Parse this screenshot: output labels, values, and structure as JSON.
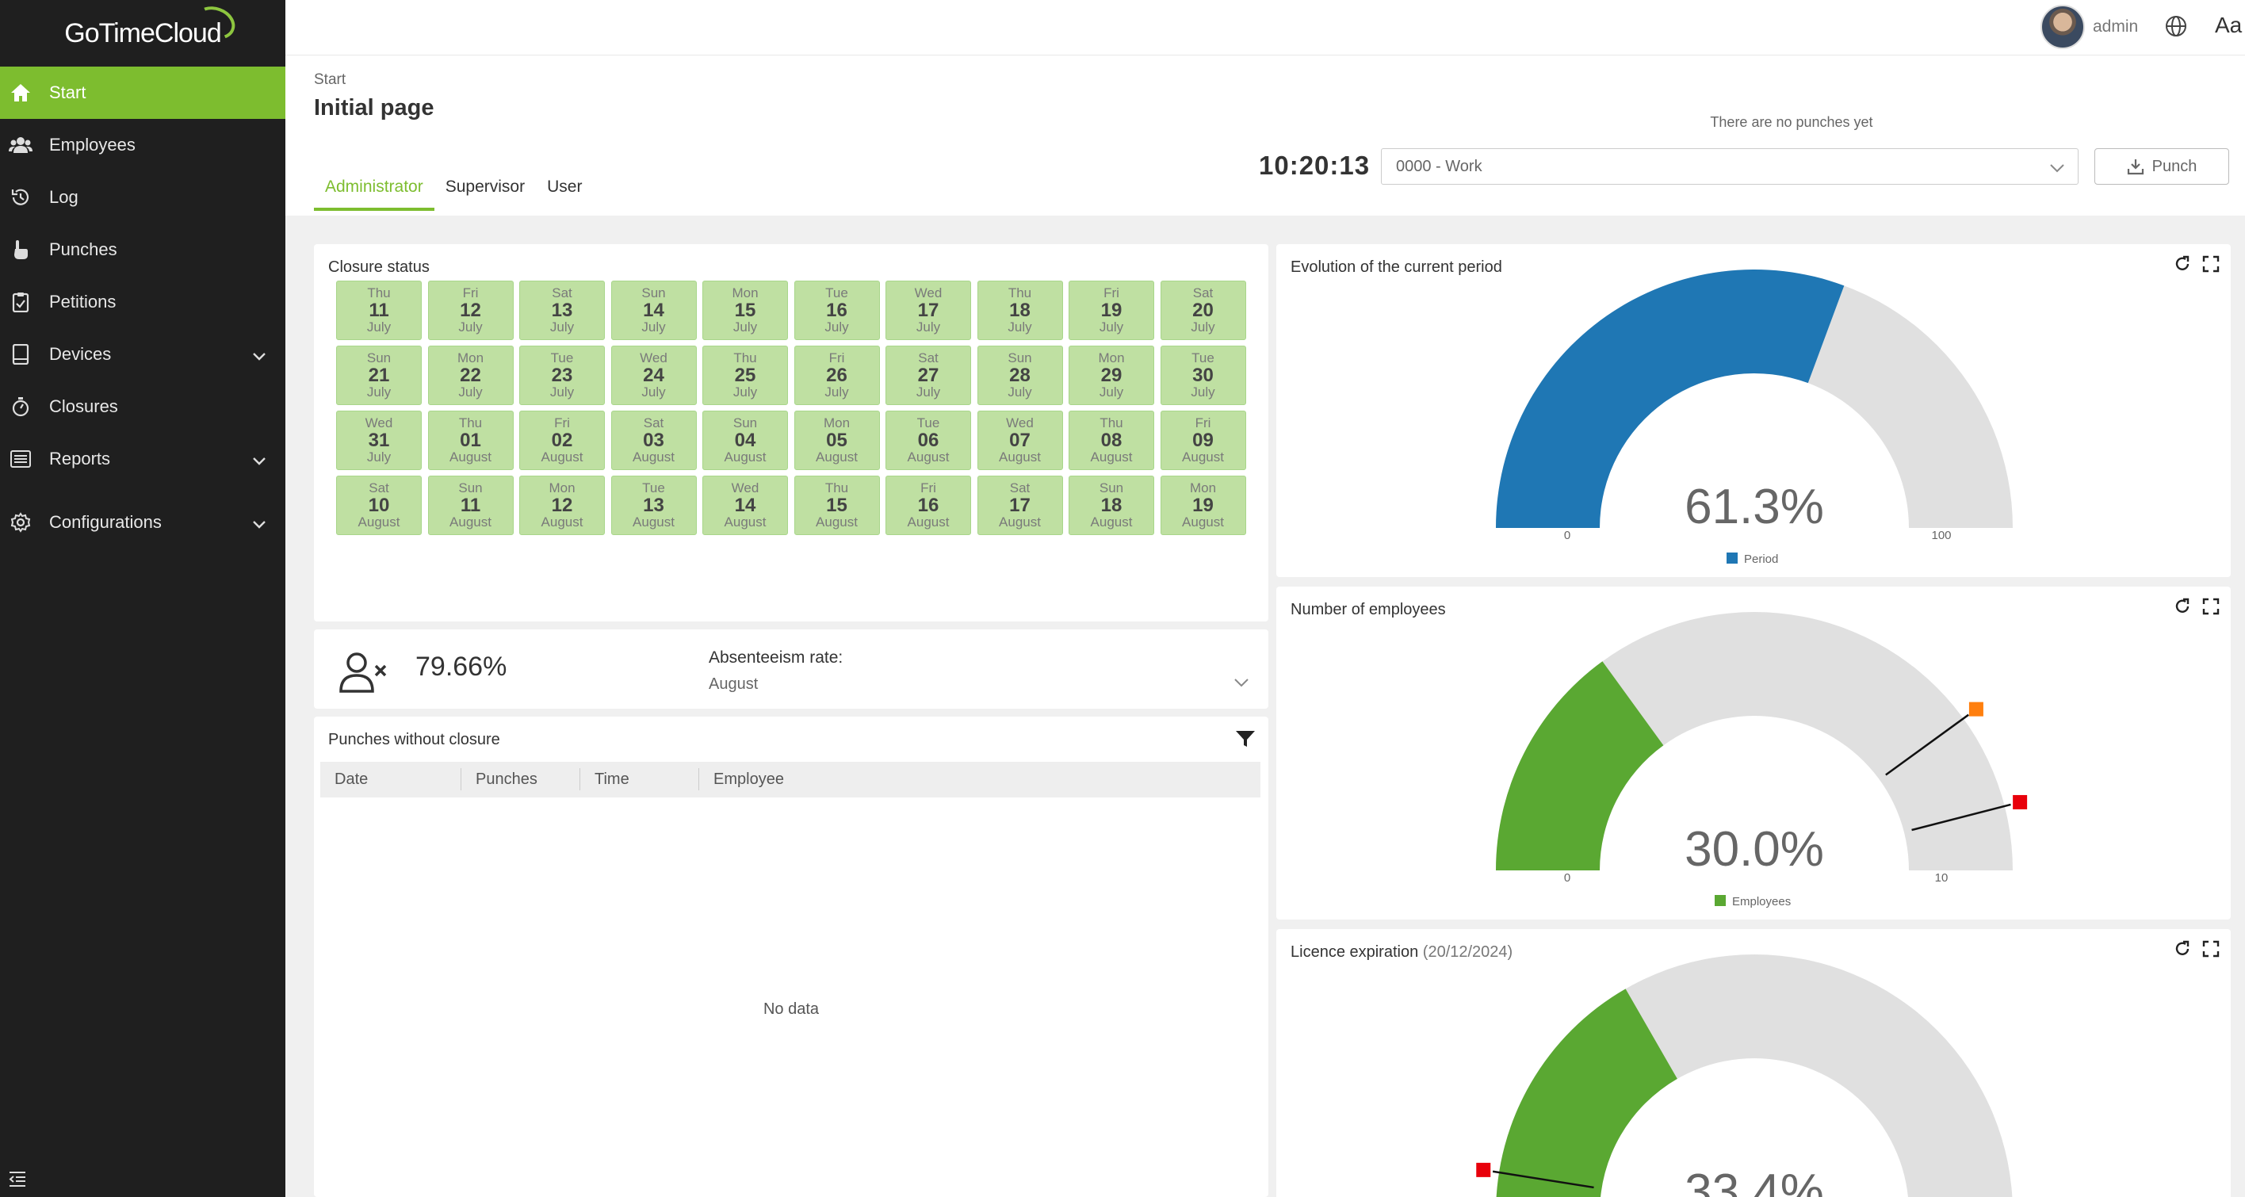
{
  "app": {
    "name_part1": "GoTime",
    "name_part2": "Cloud"
  },
  "sidebar": {
    "items": [
      {
        "label": "Start",
        "icon": "home-icon"
      },
      {
        "label": "Employees",
        "icon": "users-icon"
      },
      {
        "label": "Log",
        "icon": "history-icon"
      },
      {
        "label": "Punches",
        "icon": "hand-icon"
      },
      {
        "label": "Petitions",
        "icon": "clipboard-icon"
      },
      {
        "label": "Devices",
        "icon": "tablet-icon"
      },
      {
        "label": "Closures",
        "icon": "stopwatch-icon"
      },
      {
        "label": "Reports",
        "icon": "list-icon"
      },
      {
        "label": "Configurations",
        "icon": "gear-icon"
      }
    ]
  },
  "topbar": {
    "username": "admin",
    "font_button": "Aa"
  },
  "header": {
    "breadcrumb": "Start",
    "title": "Initial page",
    "tabs": [
      "Administrator",
      "Supervisor",
      "User"
    ],
    "no_punches": "There are no punches yet",
    "clock": "10:20:13",
    "work_select": "0000 - Work",
    "punch_button": "Punch"
  },
  "closure": {
    "title": "Closure status",
    "days": [
      [
        "Thu",
        "11",
        "July"
      ],
      [
        "Fri",
        "12",
        "July"
      ],
      [
        "Sat",
        "13",
        "July"
      ],
      [
        "Sun",
        "14",
        "July"
      ],
      [
        "Mon",
        "15",
        "July"
      ],
      [
        "Tue",
        "16",
        "July"
      ],
      [
        "Wed",
        "17",
        "July"
      ],
      [
        "Thu",
        "18",
        "July"
      ],
      [
        "Fri",
        "19",
        "July"
      ],
      [
        "Sat",
        "20",
        "July"
      ],
      [
        "Sun",
        "21",
        "July"
      ],
      [
        "Mon",
        "22",
        "July"
      ],
      [
        "Tue",
        "23",
        "July"
      ],
      [
        "Wed",
        "24",
        "July"
      ],
      [
        "Thu",
        "25",
        "July"
      ],
      [
        "Fri",
        "26",
        "July"
      ],
      [
        "Sat",
        "27",
        "July"
      ],
      [
        "Sun",
        "28",
        "July"
      ],
      [
        "Mon",
        "29",
        "July"
      ],
      [
        "Tue",
        "30",
        "July"
      ],
      [
        "Wed",
        "31",
        "July"
      ],
      [
        "Thu",
        "01",
        "August"
      ],
      [
        "Fri",
        "02",
        "August"
      ],
      [
        "Sat",
        "03",
        "August"
      ],
      [
        "Sun",
        "04",
        "August"
      ],
      [
        "Mon",
        "05",
        "August"
      ],
      [
        "Tue",
        "06",
        "August"
      ],
      [
        "Wed",
        "07",
        "August"
      ],
      [
        "Thu",
        "08",
        "August"
      ],
      [
        "Fri",
        "09",
        "August"
      ],
      [
        "Sat",
        "10",
        "August"
      ],
      [
        "Sun",
        "11",
        "August"
      ],
      [
        "Mon",
        "12",
        "August"
      ],
      [
        "Tue",
        "13",
        "August"
      ],
      [
        "Wed",
        "14",
        "August"
      ],
      [
        "Thu",
        "15",
        "August"
      ],
      [
        "Fri",
        "16",
        "August"
      ],
      [
        "Sat",
        "17",
        "August"
      ],
      [
        "Sun",
        "18",
        "August"
      ],
      [
        "Mon",
        "19",
        "August"
      ]
    ]
  },
  "absenteeism": {
    "value": "79.66%",
    "label": "Absenteeism rate:",
    "month": "August"
  },
  "punches_table": {
    "title": "Punches without closure",
    "columns": [
      "Date",
      "Punches",
      "Time",
      "Employee"
    ],
    "empty_text": "No data"
  },
  "gauges": {
    "period": {
      "title": "Evolution of the current period",
      "value_text": "61.3%",
      "fraction": 0.613,
      "min": "0",
      "max": "100",
      "legend": "Period",
      "color": "#1f77b4"
    },
    "employees": {
      "title": "Number of employees",
      "value_text": "30.0%",
      "fraction": 0.3,
      "min": "0",
      "max": "10",
      "legend": "Employees",
      "color": "#5aa832",
      "markers": [
        {
          "fraction": 0.8,
          "color": "#ff7f0e"
        },
        {
          "fraction": 0.92,
          "color": "#e8000b"
        }
      ]
    },
    "licence": {
      "title": "Licence expiration",
      "date": "(20/12/2024)",
      "value_text": "33.4%",
      "fraction": 0.334,
      "color": "#5aa832",
      "markers": [
        {
          "fraction": 0.05,
          "color": "#e8000b"
        }
      ]
    }
  },
  "colors": {
    "accent": "#7dbd2f",
    "sidebar_bg": "#1f1f1f",
    "gauge_track": "#e0e0e0"
  }
}
